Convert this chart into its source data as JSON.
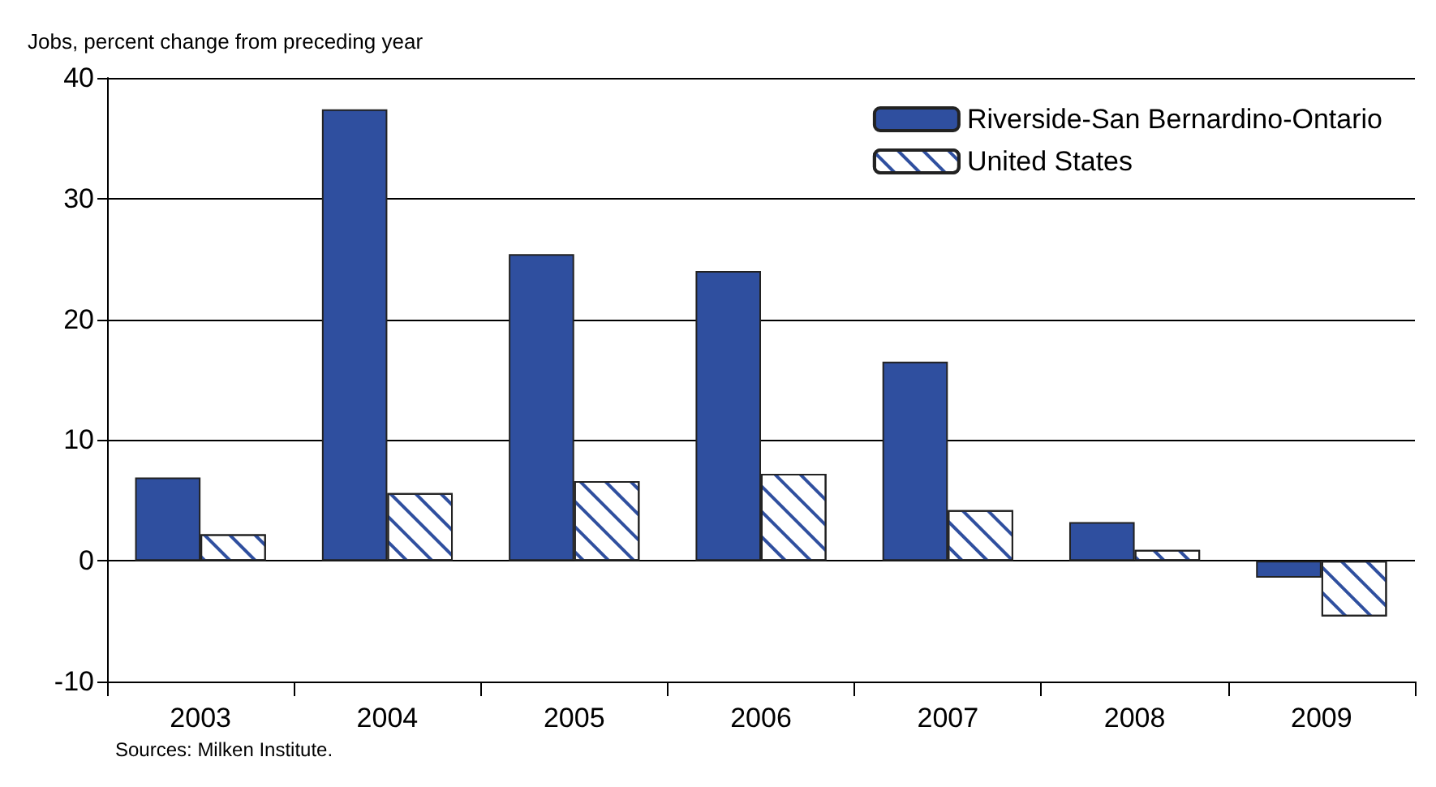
{
  "chart_data": {
    "type": "bar",
    "ylabel": "Jobs, percent change from preceding year",
    "categories": [
      "2003",
      "2004",
      "2005",
      "2006",
      "2007",
      "2008",
      "2009"
    ],
    "series": [
      {
        "name": "Riverside-San Bernardino-Ontario",
        "color": "#2f4f9f",
        "values": [
          6.9,
          37.4,
          25.4,
          24.0,
          16.5,
          3.2,
          -1.4
        ]
      },
      {
        "name": "United States",
        "color": "#ffffff",
        "values": [
          2.2,
          5.6,
          6.6,
          7.2,
          4.2,
          0.9,
          -4.6
        ]
      }
    ],
    "ylim": [
      -10,
      40
    ],
    "yticks": [
      -10,
      0,
      10,
      20,
      30,
      40
    ],
    "grid": "y",
    "legend": "top right",
    "annotations": [
      "Sources: Milken Institute."
    ]
  }
}
